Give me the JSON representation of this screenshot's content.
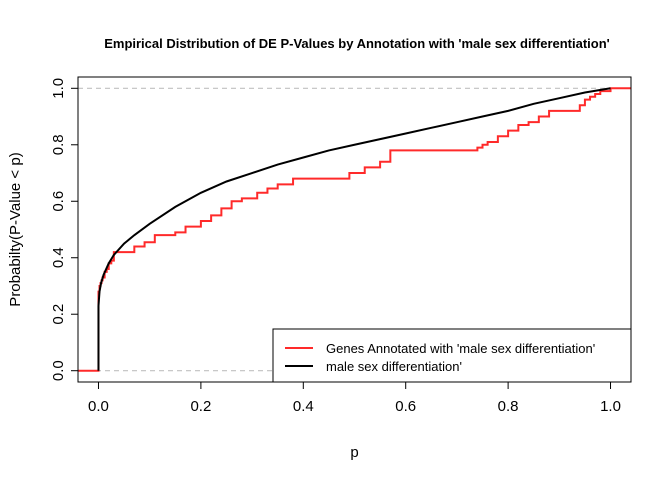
{
  "chart_data": {
    "type": "line",
    "title": "Empirical Distribution of DE P-Values by Annotation with 'male sex differentiation'",
    "xlabel": "p",
    "ylabel": "Probabilty(P-Value < p)",
    "xlim": [
      -0.04,
      1.04
    ],
    "ylim": [
      -0.04,
      1.04
    ],
    "x_ticks": [
      "0.0",
      "0.2",
      "0.4",
      "0.6",
      "0.8",
      "1.0"
    ],
    "y_ticks": [
      "0.0",
      "0.2",
      "0.4",
      "0.6",
      "0.8",
      "1.0"
    ],
    "reference_lines": [
      0,
      1
    ],
    "legend": {
      "placement": "bottom-right",
      "entries": [
        {
          "label": "Genes Annotated with 'male sex differentiation'",
          "color": "#ff2a2a"
        },
        {
          "label": "male sex differentiation'",
          "color": "#000000"
        }
      ]
    },
    "series": [
      {
        "color": "#ff2a2a",
        "step": true,
        "x": [
          -0.04,
          0.0,
          0.0,
          0.0,
          0.0,
          0.002,
          0.004,
          0.006,
          0.008,
          0.012,
          0.016,
          0.02,
          0.025,
          0.03,
          0.07,
          0.09,
          0.11,
          0.15,
          0.17,
          0.2,
          0.22,
          0.24,
          0.26,
          0.28,
          0.31,
          0.33,
          0.35,
          0.38,
          0.49,
          0.52,
          0.55,
          0.57,
          0.74,
          0.75,
          0.76,
          0.78,
          0.8,
          0.82,
          0.84,
          0.86,
          0.88,
          0.94,
          0.95,
          0.96,
          0.97,
          0.98,
          1.0,
          1.04
        ],
        "y": [
          0.0,
          0.0,
          0.23,
          0.26,
          0.28,
          0.3,
          0.31,
          0.32,
          0.33,
          0.35,
          0.36,
          0.38,
          0.39,
          0.42,
          0.44,
          0.455,
          0.48,
          0.49,
          0.51,
          0.53,
          0.55,
          0.575,
          0.6,
          0.61,
          0.63,
          0.645,
          0.66,
          0.68,
          0.7,
          0.72,
          0.74,
          0.78,
          0.79,
          0.8,
          0.81,
          0.83,
          0.85,
          0.87,
          0.88,
          0.9,
          0.92,
          0.94,
          0.96,
          0.97,
          0.98,
          0.99,
          1.0,
          1.0
        ]
      },
      {
        "color": "#000000",
        "step": false,
        "x": [
          0.0,
          0.0,
          0.002,
          0.005,
          0.01,
          0.02,
          0.03,
          0.05,
          0.07,
          0.1,
          0.15,
          0.2,
          0.25,
          0.3,
          0.35,
          0.4,
          0.45,
          0.5,
          0.55,
          0.6,
          0.65,
          0.7,
          0.75,
          0.8,
          0.85,
          0.9,
          0.95,
          1.0
        ],
        "y": [
          0.0,
          0.23,
          0.28,
          0.31,
          0.34,
          0.38,
          0.41,
          0.45,
          0.48,
          0.52,
          0.58,
          0.63,
          0.67,
          0.7,
          0.73,
          0.755,
          0.78,
          0.8,
          0.82,
          0.84,
          0.86,
          0.88,
          0.9,
          0.92,
          0.945,
          0.965,
          0.985,
          1.0
        ]
      }
    ]
  }
}
